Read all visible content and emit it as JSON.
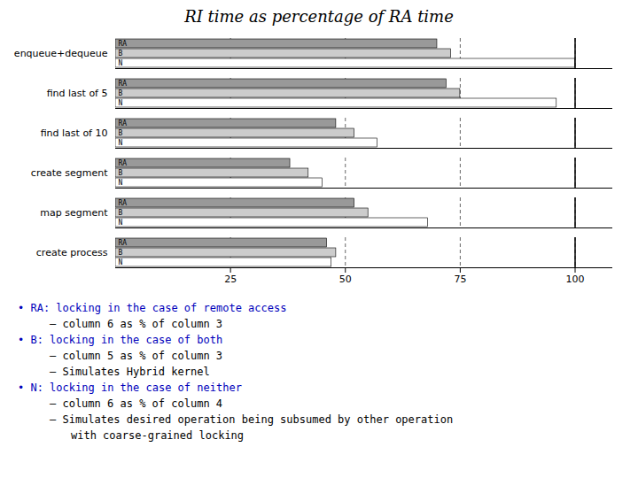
{
  "chart_data": {
    "type": "bar",
    "orientation": "horizontal",
    "title": "RI time as percentage of RA time",
    "categories": [
      "enqueue+dequeue",
      "find last of 5",
      "find last of 10",
      "create segment",
      "map segment",
      "create process"
    ],
    "series": [
      {
        "name": "RA",
        "color": "#999999",
        "values": [
          70,
          72,
          48,
          38,
          52,
          46
        ]
      },
      {
        "name": "B",
        "color": "#cccccc",
        "values": [
          73,
          75,
          52,
          42,
          55,
          48
        ]
      },
      {
        "name": "N",
        "color": "#ffffff",
        "values": [
          100,
          96,
          57,
          45,
          68,
          47
        ]
      }
    ],
    "xlim": [
      0,
      108
    ],
    "xticks": [
      25,
      50,
      75,
      100
    ],
    "grid": true,
    "reference_lines": [
      100
    ],
    "annotations": [
      {
        "text": "• RA: locking in the case of remote access",
        "color": "#0000bb"
      },
      {
        "text": "– column 6 as % of column 3",
        "color": "#000000"
      },
      {
        "text": "• B: locking in the case of both",
        "color": "#0000bb"
      },
      {
        "text": "– column 5 as % of column 3",
        "color": "#000000"
      },
      {
        "text": "– Simulates Hybrid kernel",
        "color": "#000000"
      },
      {
        "text": "• N: locking in the case of neither",
        "color": "#0000bb"
      },
      {
        "text": "– column 6 as % of column 4",
        "color": "#000000"
      },
      {
        "text": "– Simulates desired operation being subsumed by other operation",
        "color": "#000000"
      },
      {
        "text": "with coarse-grained locking",
        "color": "#000000"
      }
    ]
  }
}
